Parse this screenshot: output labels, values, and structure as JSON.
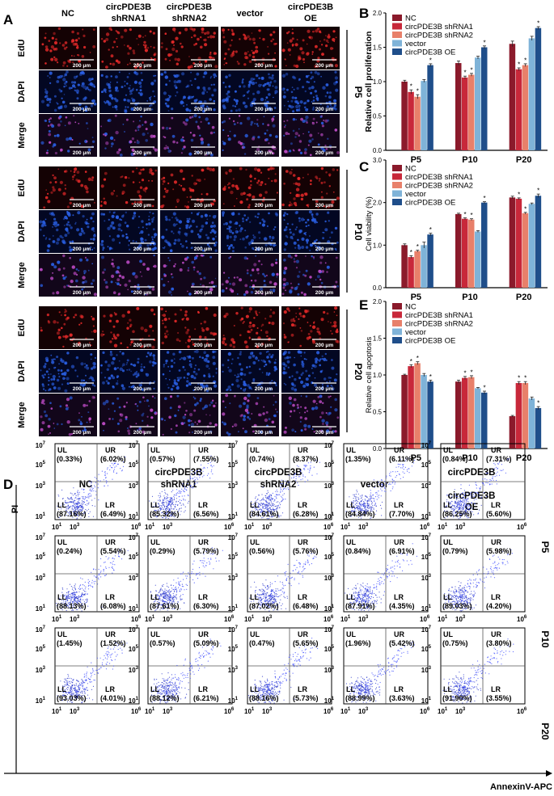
{
  "panels": {
    "A": "A",
    "B": "B",
    "C": "C",
    "D": "D",
    "E": "E"
  },
  "colors": {
    "NC": "#8b1a2b",
    "circPDE3B shRNA1": "#c8283a",
    "circPDE3B shRNA2": "#e8806a",
    "vector": "#7fb3d8",
    "circPDE3B OE": "#1f4e8a",
    "edu": "#e82a2a",
    "dapi": "#2a60e6",
    "merge": "#c04cc8",
    "dot": "#2a3aff",
    "dot_dense": "#1e2bc8"
  },
  "micro": {
    "columns": [
      {
        "line1": "NC",
        "line2": ""
      },
      {
        "line1": "circPDE3B",
        "line2": "shRNA1"
      },
      {
        "line1": "circPDE3B",
        "line2": "shRNA2"
      },
      {
        "line1": "vector",
        "line2": ""
      },
      {
        "line1": "circPDE3B",
        "line2": "OE"
      }
    ],
    "row_labels": [
      "EdU",
      "DAPI",
      "Merge"
    ],
    "groups": [
      "P5",
      "P10",
      "P20"
    ],
    "scale_bar": "200 μm"
  },
  "chart_data": [
    {
      "panel": "B",
      "type": "bar",
      "categories": [
        "P5",
        "P10",
        "P20"
      ],
      "ylabel": "Relative cell proliferation",
      "ylim": [
        0,
        2.0
      ],
      "yticks": [
        "0.0",
        "0.5",
        "1.0",
        "1.5",
        "2.0"
      ],
      "legend_placement": "top-left",
      "series": [
        {
          "name": "NC",
          "values": [
            1.0,
            1.27,
            1.55
          ],
          "errors": [
            0.02,
            0.03,
            0.04
          ],
          "sig": [
            "",
            "",
            ""
          ]
        },
        {
          "name": "circPDE3B shRNA1",
          "values": [
            0.85,
            1.06,
            1.18
          ],
          "errors": [
            0.03,
            0.02,
            0.02
          ],
          "sig": [
            "*",
            "*",
            "*"
          ]
        },
        {
          "name": "circPDE3B shRNA2",
          "values": [
            0.78,
            1.1,
            1.24
          ],
          "errors": [
            0.03,
            0.02,
            0.02
          ],
          "sig": [
            "*",
            "*",
            "*"
          ]
        },
        {
          "name": "vector",
          "values": [
            1.01,
            1.35,
            1.63
          ],
          "errors": [
            0.02,
            0.02,
            0.03
          ],
          "sig": [
            "",
            "",
            ""
          ]
        },
        {
          "name": "circPDE3B OE",
          "values": [
            1.24,
            1.5,
            1.78
          ],
          "errors": [
            0.02,
            0.02,
            0.02
          ],
          "sig": [
            "*",
            "*",
            "*"
          ]
        }
      ]
    },
    {
      "panel": "C",
      "type": "bar",
      "categories": [
        "P5",
        "P10",
        "P20"
      ],
      "ylabel": "Cell viability (%)",
      "ylim": [
        0,
        3.0
      ],
      "yticks": [
        "0.0",
        "1.0",
        "2.0",
        "3.0"
      ],
      "legend_placement": "top-left",
      "series": [
        {
          "name": "NC",
          "values": [
            1.0,
            1.73,
            2.12
          ],
          "errors": [
            0.03,
            0.02,
            0.03
          ],
          "sig": [
            "",
            "",
            ""
          ]
        },
        {
          "name": "circPDE3B shRNA1",
          "values": [
            0.72,
            1.62,
            2.09
          ],
          "errors": [
            0.03,
            0.02,
            0.02
          ],
          "sig": [
            "*",
            "*",
            "*"
          ]
        },
        {
          "name": "circPDE3B shRNA2",
          "values": [
            0.86,
            1.6,
            1.75
          ],
          "errors": [
            0.02,
            0.02,
            0.02
          ],
          "sig": [
            "*",
            "*",
            "*"
          ]
        },
        {
          "name": "vector",
          "values": [
            1.0,
            1.32,
            1.97
          ],
          "errors": [
            0.07,
            0.02,
            0.02
          ],
          "sig": [
            "",
            "",
            ""
          ]
        },
        {
          "name": "circPDE3B OE",
          "values": [
            1.25,
            2.0,
            2.16
          ],
          "errors": [
            0.03,
            0.02,
            0.04
          ],
          "sig": [
            "*",
            "*",
            "*"
          ]
        }
      ]
    },
    {
      "panel": "E",
      "type": "bar",
      "categories": [
        "P5",
        "P10",
        "P20"
      ],
      "ylabel": "Relative cell apoptosis",
      "ylim": [
        0,
        2.0
      ],
      "yticks": [
        "0.0",
        "0.5",
        "1.0",
        "1.5",
        "2.0"
      ],
      "legend_placement": "top-left",
      "series": [
        {
          "name": "NC",
          "values": [
            1.0,
            0.91,
            0.44
          ],
          "errors": [
            0.01,
            0.02,
            0.01
          ],
          "sig": [
            "",
            "",
            ""
          ]
        },
        {
          "name": "circPDE3B shRNA1",
          "values": [
            1.12,
            0.96,
            0.89
          ],
          "errors": [
            0.02,
            0.02,
            0.02
          ],
          "sig": [
            "*",
            "*",
            "*"
          ]
        },
        {
          "name": "circPDE3B shRNA2",
          "values": [
            1.16,
            0.97,
            0.89
          ],
          "errors": [
            0.02,
            0.02,
            0.02
          ],
          "sig": [
            "*",
            "*",
            "*"
          ]
        },
        {
          "name": "vector",
          "values": [
            1.0,
            0.82,
            0.68
          ],
          "errors": [
            0.02,
            0.01,
            0.02
          ],
          "sig": [
            "",
            "",
            ""
          ]
        },
        {
          "name": "circPDE3B OE",
          "values": [
            0.91,
            0.76,
            0.55
          ],
          "errors": [
            0.02,
            0.02,
            0.02
          ],
          "sig": [
            "*",
            "*",
            "*"
          ]
        }
      ]
    }
  ],
  "flow": {
    "ylabel": "PI",
    "xlabel": "AnnexinV-APC",
    "quadrants": [
      "UL",
      "UR",
      "LL",
      "LR"
    ],
    "ticks_x": [
      [
        "10",
        "1"
      ],
      [
        "10",
        "3"
      ],
      [
        "10",
        "6"
      ]
    ],
    "ticks_y": [
      [
        "10",
        "7"
      ],
      [
        "10",
        "5"
      ],
      [
        "10",
        "3"
      ],
      [
        "10",
        "1"
      ]
    ],
    "columns": [
      {
        "line1": "",
        "line2": "NC"
      },
      {
        "line1": "circPDE3B",
        "line2": "shRNA1"
      },
      {
        "line1": "circPDE3B",
        "line2": "shRNA2"
      },
      {
        "line1": "",
        "line2": "vector"
      },
      {
        "line1": "circPDE3B",
        "line2": "OE"
      }
    ],
    "rows": [
      {
        "label": "P5",
        "plots": [
          {
            "UL": "(0.33%)",
            "UR": "(6.02%)",
            "LL": "(87.16%)",
            "LR": "(6.49%)"
          },
          {
            "UL": "(0.57%)",
            "UR": "(7.55%)",
            "LL": "(85.32%)",
            "LR": "(6.56%)"
          },
          {
            "UL": "(0.74%)",
            "UR": "(8.37%)",
            "LL": "(84.61%)",
            "LR": "(6.28%)"
          },
          {
            "UL": "(1.35%)",
            "UR": "(6.11%)",
            "LL": "(84.84%)",
            "LR": "(7.70%)"
          },
          {
            "UL": "(0.84%)",
            "UR": "(7.31%)",
            "LL": "(86.25%)",
            "LR": "(5.60%)"
          }
        ]
      },
      {
        "label": "P10",
        "plots": [
          {
            "UL": "(0.24%)",
            "UR": "(5.54%)",
            "LL": "(88.13%)",
            "LR": "(6.08%)"
          },
          {
            "UL": "(0.29%)",
            "UR": "(5.79%)",
            "LL": "(87.61%)",
            "LR": "(6.30%)"
          },
          {
            "UL": "(0.56%)",
            "UR": "(5.76%)",
            "LL": "(87.02%)",
            "LR": "(6.48%)"
          },
          {
            "UL": "(0.84%)",
            "UR": "(6.91%)",
            "LL": "(87.91%)",
            "LR": "(4.35%)"
          },
          {
            "UL": "(0.79%)",
            "UR": "(5.98%)",
            "LL": "(89.03%)",
            "LR": "(4.20%)"
          }
        ]
      },
      {
        "label": "P20",
        "plots": [
          {
            "UL": "(1.45%)",
            "UR": "(1.52%)",
            "LL": "(93.03%)",
            "LR": "(4.01%)"
          },
          {
            "UL": "(0.57%)",
            "UR": "(5.09%)",
            "LL": "(88.12%)",
            "LR": "(6.21%)"
          },
          {
            "UL": "(0.47%)",
            "UR": "(5.65%)",
            "LL": "(88.16%)",
            "LR": "(5.73%)"
          },
          {
            "UL": "(1.96%)",
            "UR": "(5.42%)",
            "LL": "(88.99%)",
            "LR": "(3.63%)"
          },
          {
            "UL": "(0.75%)",
            "UR": "(3.80%)",
            "LL": "(91.90%)",
            "LR": "(3.55%)"
          }
        ]
      }
    ]
  }
}
